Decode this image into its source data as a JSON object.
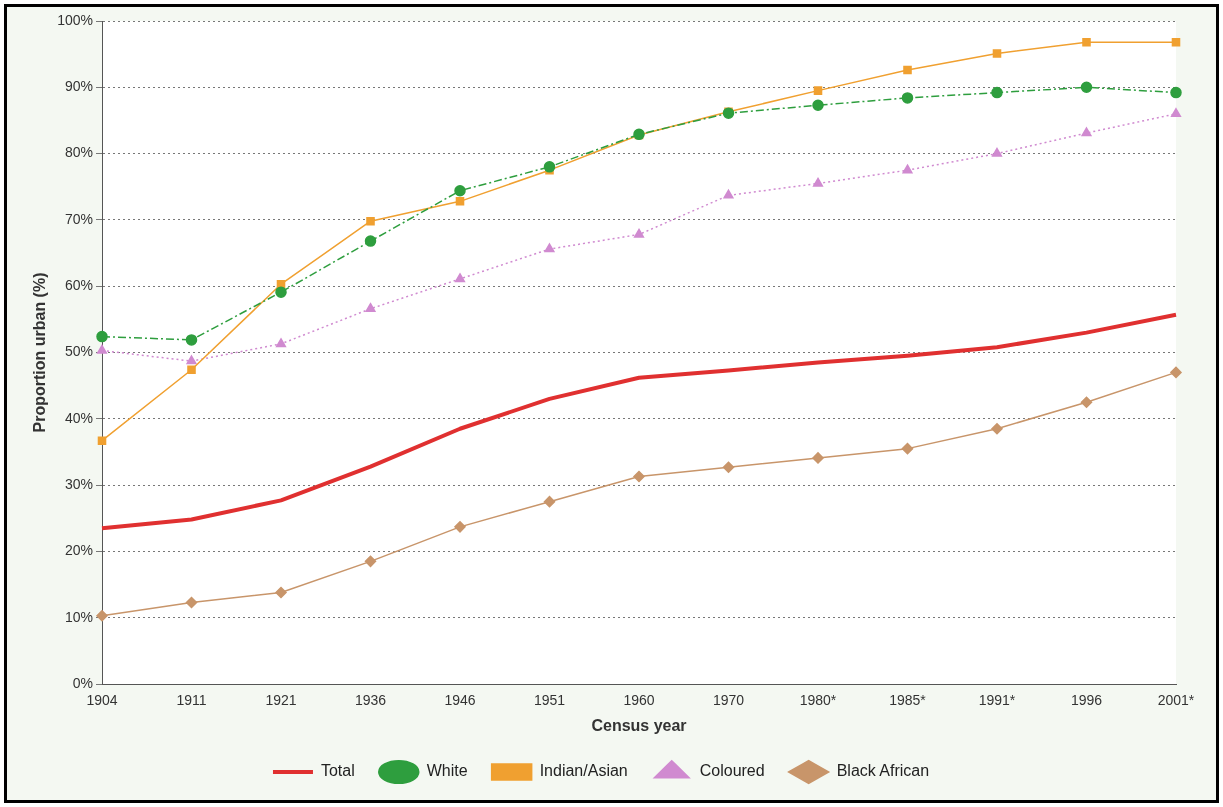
{
  "chart_data": {
    "type": "line",
    "xlabel": "Census year",
    "ylabel": "Proportion urban (%)",
    "categories": [
      "1904",
      "1911",
      "1921",
      "1936",
      "1946",
      "1951",
      "1960",
      "1970",
      "1980*",
      "1985*",
      "1991*",
      "1996",
      "2001*"
    ],
    "ylim": [
      0,
      100
    ],
    "yticks": [
      {
        "value": 0,
        "label": "0%"
      },
      {
        "value": 10,
        "label": "10%"
      },
      {
        "value": 20,
        "label": "20%"
      },
      {
        "value": 30,
        "label": "30%"
      },
      {
        "value": 40,
        "label": "40%"
      },
      {
        "value": 50,
        "label": "50%"
      },
      {
        "value": 60,
        "label": "60%"
      },
      {
        "value": 70,
        "label": "70%"
      },
      {
        "value": 80,
        "label": "80%"
      },
      {
        "value": 90,
        "label": "90%"
      },
      {
        "value": 100,
        "label": "100%"
      }
    ],
    "grid": "y",
    "legend": "bottom",
    "series": [
      {
        "name": "Black African",
        "color": "#c8956a",
        "marker": "diamond",
        "line_style": "solid",
        "values": [
          10.3,
          12.3,
          13.8,
          18.5,
          23.7,
          27.5,
          31.3,
          32.7,
          34.1,
          35.5,
          38.5,
          42.5,
          47
        ]
      },
      {
        "name": "Coloured",
        "color": "#d08ad0",
        "marker": "triangle",
        "line_style": "dotted",
        "values": [
          50.3,
          48.7,
          51.3,
          56.6,
          61.1,
          65.6,
          67.8,
          73.7,
          75.5,
          77.5,
          80,
          83.1,
          86
        ]
      },
      {
        "name": "Indian/Asian",
        "color": "#f0a030",
        "marker": "square",
        "line_style": "solid",
        "values": [
          36.7,
          47.4,
          60.3,
          69.8,
          72.8,
          77.5,
          82.8,
          86.3,
          89.5,
          92.6,
          95.1,
          96.8,
          96.8
        ]
      },
      {
        "name": "White",
        "color": "#2e9e3e",
        "marker": "circle",
        "line_style": "dashed",
        "values": [
          52.4,
          51.9,
          59.1,
          66.8,
          74.4,
          78,
          82.9,
          86.1,
          87.3,
          88.4,
          89.2,
          90,
          89.2
        ]
      },
      {
        "name": "Total",
        "color": "#e03030",
        "marker": "none",
        "line_style": "solid",
        "values": [
          23.5,
          24.8,
          27.7,
          32.8,
          38.5,
          43,
          46.2,
          47.3,
          48.5,
          49.5,
          50.8,
          53,
          55.7
        ]
      }
    ]
  }
}
